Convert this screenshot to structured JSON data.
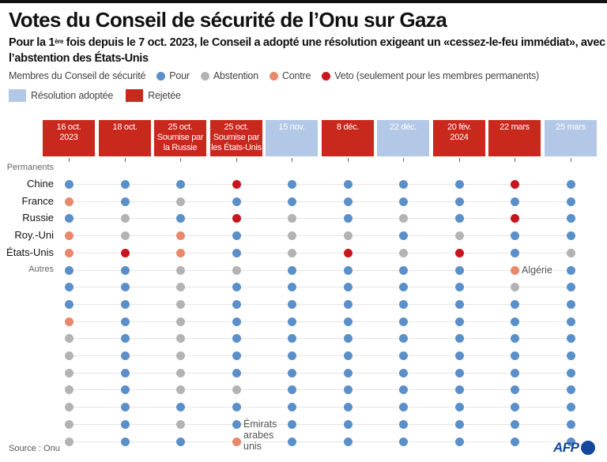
{
  "header": {
    "title": "Votes du Conseil de sécurité de l’Onu sur Gaza",
    "subtitle_pre": "Pour la 1",
    "subtitle_sup": "ère",
    "subtitle_post": " fois depuis le 7 oct. 2023, le Conseil a adopté une résolution exigeant un «cessez-le-feu immédiat», avec l’abstention des États-Unis"
  },
  "legend": {
    "members_label": "Membres du Conseil de sécurité",
    "votes": [
      {
        "key": "pour",
        "label": "Pour",
        "color": "#5b8fc9"
      },
      {
        "key": "abstention",
        "label": "Abstention",
        "color": "#b3b3b3"
      },
      {
        "key": "contre",
        "label": "Contre",
        "color": "#e8896b"
      },
      {
        "key": "veto",
        "label": "Veto (seulement pour les membres permanents)",
        "color": "#c8161d"
      }
    ],
    "outcomes": [
      {
        "key": "adoptee",
        "label": "Résolution adoptée",
        "color": "#b2c8e6"
      },
      {
        "key": "rejetee",
        "label": "Rejetée",
        "color": "#c9281c"
      }
    ]
  },
  "chart_data": {
    "type": "dot-matrix",
    "title": "Votes du Conseil de sécurité de l’Onu sur Gaza",
    "columns": [
      {
        "lines": [
          "16 oct.",
          "2023"
        ],
        "outcome": "rejetee"
      },
      {
        "lines": [
          "18 oct."
        ],
        "outcome": "rejetee"
      },
      {
        "lines": [
          "25 oct.",
          "Soumise par",
          "la Russie"
        ],
        "outcome": "rejetee"
      },
      {
        "lines": [
          "25 oct.",
          "Soumise par",
          "les États-Unis"
        ],
        "outcome": "rejetee"
      },
      {
        "lines": [
          "15 nov."
        ],
        "outcome": "adoptee"
      },
      {
        "lines": [
          "8 déc."
        ],
        "outcome": "rejetee"
      },
      {
        "lines": [
          "22 déc."
        ],
        "outcome": "adoptee"
      },
      {
        "lines": [
          "20 fév.",
          "2024"
        ],
        "outcome": "rejetee"
      },
      {
        "lines": [
          "22 mars"
        ],
        "outcome": "rejetee"
      },
      {
        "lines": [
          "25 mars"
        ],
        "outcome": "adoptee"
      }
    ],
    "group_labels": {
      "permanent": "Permanents",
      "others": "Autres"
    },
    "rows": [
      {
        "label": "Chine",
        "group": "permanent",
        "votes": [
          "pour",
          "pour",
          "pour",
          "veto",
          "pour",
          "pour",
          "pour",
          "pour",
          "veto",
          "pour"
        ]
      },
      {
        "label": "France",
        "group": "permanent",
        "votes": [
          "contre",
          "pour",
          "abstention",
          "pour",
          "pour",
          "pour",
          "pour",
          "pour",
          "pour",
          "pour"
        ]
      },
      {
        "label": "Russie",
        "group": "permanent",
        "votes": [
          "pour",
          "abstention",
          "pour",
          "veto",
          "abstention",
          "pour",
          "abstention",
          "pour",
          "veto",
          "pour"
        ]
      },
      {
        "label": "Roy.-Uni",
        "group": "permanent",
        "votes": [
          "contre",
          "abstention",
          "contre",
          "pour",
          "abstention",
          "abstention",
          "pour",
          "abstention",
          "pour",
          "pour"
        ]
      },
      {
        "label": "États-Unis",
        "group": "permanent",
        "votes": [
          "contre",
          "veto",
          "contre",
          "pour",
          "abstention",
          "veto",
          "abstention",
          "veto",
          "pour",
          "abstention"
        ]
      },
      {
        "label": "",
        "group": "others",
        "votes": [
          "pour",
          "pour",
          "abstention",
          "abstention",
          "pour",
          "pour",
          "pour",
          "pour",
          "contre",
          "pour"
        ]
      },
      {
        "label": "",
        "group": "others",
        "votes": [
          "pour",
          "pour",
          "abstention",
          "pour",
          "pour",
          "pour",
          "pour",
          "pour",
          "abstention",
          "pour"
        ]
      },
      {
        "label": "",
        "group": "others",
        "votes": [
          "pour",
          "pour",
          "abstention",
          "pour",
          "pour",
          "pour",
          "pour",
          "pour",
          "pour",
          "pour"
        ]
      },
      {
        "label": "",
        "group": "others",
        "votes": [
          "contre",
          "pour",
          "abstention",
          "pour",
          "pour",
          "pour",
          "pour",
          "pour",
          "pour",
          "pour"
        ]
      },
      {
        "label": "",
        "group": "others",
        "votes": [
          "abstention",
          "pour",
          "abstention",
          "pour",
          "pour",
          "pour",
          "pour",
          "pour",
          "pour",
          "pour"
        ]
      },
      {
        "label": "",
        "group": "others",
        "votes": [
          "abstention",
          "pour",
          "abstention",
          "pour",
          "pour",
          "pour",
          "pour",
          "pour",
          "pour",
          "pour"
        ]
      },
      {
        "label": "",
        "group": "others",
        "votes": [
          "abstention",
          "pour",
          "abstention",
          "pour",
          "pour",
          "pour",
          "pour",
          "pour",
          "pour",
          "pour"
        ]
      },
      {
        "label": "",
        "group": "others",
        "votes": [
          "abstention",
          "pour",
          "abstention",
          "abstention",
          "pour",
          "pour",
          "pour",
          "pour",
          "pour",
          "pour"
        ]
      },
      {
        "label": "",
        "group": "others",
        "votes": [
          "abstention",
          "pour",
          "pour",
          "pour",
          "pour",
          "pour",
          "pour",
          "pour",
          "pour",
          "pour"
        ]
      },
      {
        "label": "",
        "group": "others",
        "votes": [
          "abstention",
          "pour",
          "abstention",
          "pour",
          "pour",
          "pour",
          "pour",
          "pour",
          "pour",
          "pour"
        ]
      },
      {
        "label": "",
        "group": "others",
        "votes": [
          "abstention",
          "pour",
          "pour",
          "contre",
          "pour",
          "pour",
          "pour",
          "pour",
          "pour",
          "pour"
        ]
      }
    ],
    "annotations": [
      {
        "text": "Algérie",
        "row": 5,
        "col": 8
      },
      {
        "text": "Émirats arabes unis",
        "row": 14,
        "col": 3
      }
    ]
  },
  "footer": {
    "source": "Source : Onu",
    "logo": "AFP"
  }
}
